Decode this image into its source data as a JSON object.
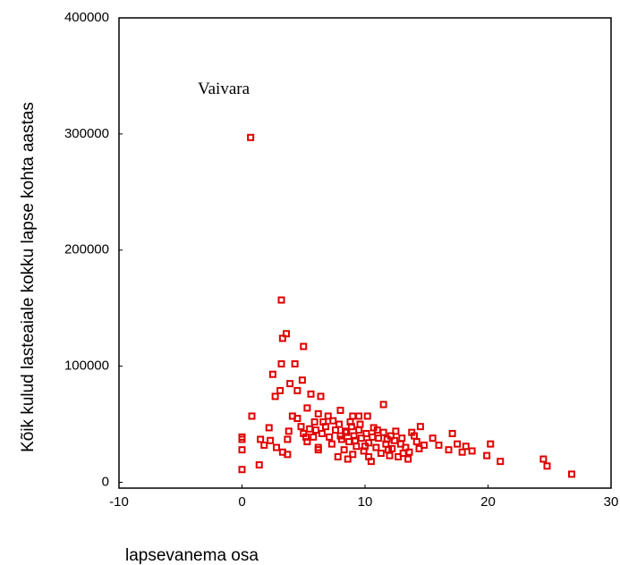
{
  "chart_data": {
    "type": "scatter",
    "xlabel": "lapsevanema osa",
    "ylabel": "Kõik kulud lasteaiale kokku lapse kohta aastas",
    "annotation": {
      "text": "Vaivara",
      "x": -3.6,
      "y": 338000
    },
    "color": "#e00000",
    "xlim": [
      -10,
      30
    ],
    "ylim": [
      -5000,
      400000
    ],
    "xticks": [
      -10,
      0,
      10,
      20,
      30
    ],
    "yticks": [
      0,
      100000,
      200000,
      300000,
      400000
    ],
    "x": [
      0.7,
      3.2,
      3.6,
      3.3,
      5,
      3.2,
      4.3,
      2.5,
      3.9,
      4.9,
      3.1,
      4.5,
      5.6,
      2.7,
      6.4,
      5.3,
      11.5,
      0.8,
      4.1,
      4.5,
      6.2,
      7,
      9,
      9.5,
      10.2,
      5.9,
      6.6,
      8,
      0,
      0,
      0,
      0,
      1.4,
      1.5,
      1.8,
      2.2,
      2.3,
      2.8,
      3.3,
      3.7,
      3.7,
      3.8,
      5,
      5.3,
      5.5,
      5.8,
      6.2,
      6.5,
      6.8,
      7.1,
      7.3,
      7.6,
      7.9,
      8.1,
      8.3,
      8.5,
      8.7,
      8.9,
      9.1,
      9.3,
      9.5,
      9.7,
      9.9,
      10.1,
      10.3,
      10.5,
      10.7,
      10.9,
      11.1,
      11.3,
      11.5,
      11.7,
      11.9,
      12.1,
      12.4,
      12.7,
      13,
      13.3,
      13.6,
      13.8,
      14.2,
      14.5,
      14.8,
      15.5,
      16,
      16.8,
      17.1,
      17.5,
      17.9,
      18.2,
      18.7,
      19.9,
      20.2,
      21,
      24.5,
      24.8,
      26.8,
      6.2,
      7.8,
      8.6,
      10.3,
      12,
      13.5,
      9,
      11,
      12.5,
      14,
      8,
      8.4,
      9.2,
      10.6,
      11.8,
      12.9,
      10,
      9.6,
      8.8,
      7.4,
      6,
      5.2,
      4.8,
      12.2,
      13.1,
      14.4
    ],
    "values": [
      297000,
      157000,
      128000,
      124000,
      117000,
      102000,
      102000,
      93000,
      85000,
      88000,
      79000,
      79000,
      76000,
      74000,
      74000,
      64000,
      67000,
      57000,
      57000,
      55000,
      59000,
      57000,
      57000,
      57000,
      57000,
      52000,
      52000,
      62000,
      39000,
      37000,
      28000,
      11000,
      15000,
      37000,
      32000,
      47000,
      36000,
      30000,
      26000,
      24000,
      37000,
      44000,
      42000,
      35000,
      46000,
      39000,
      30000,
      42000,
      48000,
      39000,
      33000,
      45000,
      50000,
      37000,
      28000,
      43000,
      35000,
      48000,
      40000,
      31000,
      45000,
      38000,
      27000,
      42000,
      34000,
      18000,
      47000,
      30000,
      38000,
      25000,
      43000,
      33000,
      28000,
      40000,
      36000,
      22000,
      38000,
      30000,
      26000,
      43000,
      35000,
      48000,
      32000,
      38000,
      32000,
      28000,
      42000,
      33000,
      26000,
      31000,
      27000,
      23000,
      33000,
      18000,
      20000,
      14000,
      7000,
      28000,
      22000,
      20000,
      22000,
      23000,
      20000,
      24000,
      45000,
      44000,
      40000,
      40000,
      44000,
      36000,
      39000,
      37000,
      33000,
      31000,
      50000,
      52000,
      53000,
      45000,
      39000,
      48000,
      29000,
      25000,
      29000
    ]
  }
}
